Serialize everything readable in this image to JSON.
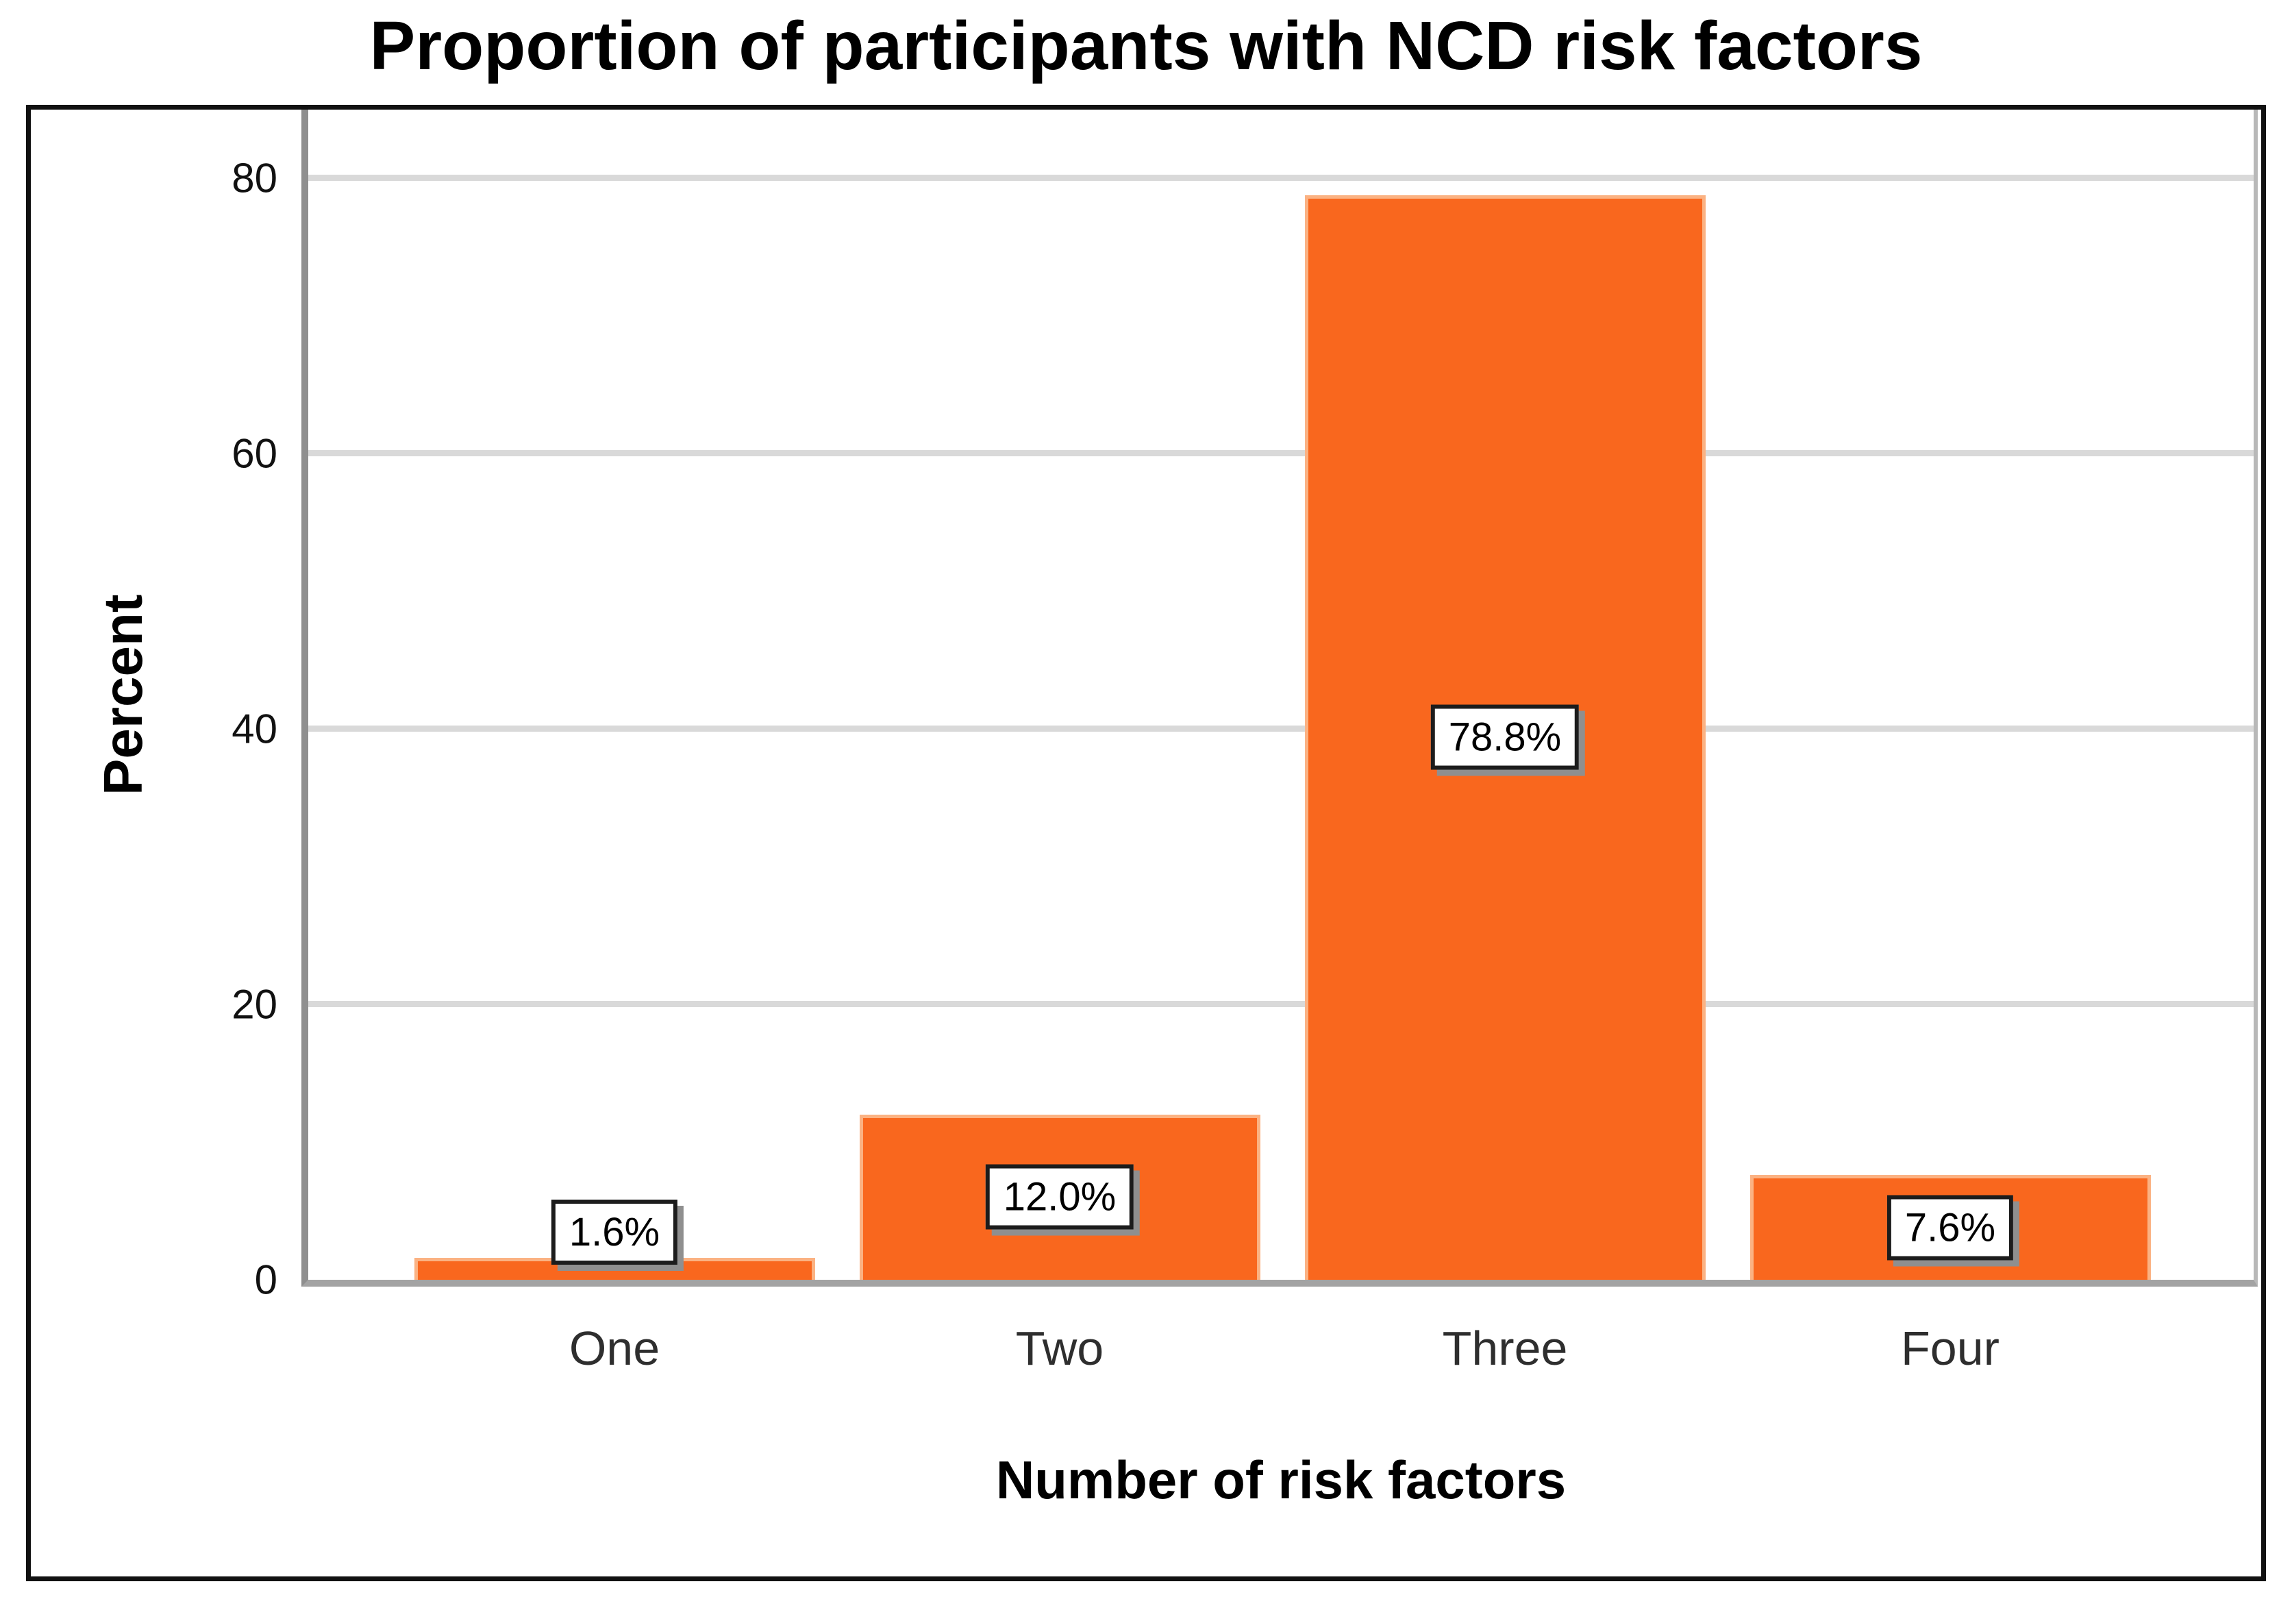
{
  "chart_data": {
    "type": "bar",
    "title": "Proportion of participants with NCD risk factors",
    "xlabel": "Number of risk factors",
    "ylabel": "Percent",
    "categories": [
      "One",
      "Two",
      "Three",
      "Four"
    ],
    "values": [
      1.6,
      12.0,
      78.8,
      7.6
    ],
    "value_labels": [
      "1.6%",
      "12.0%",
      "78.8%",
      "7.6%"
    ],
    "value_label_position": [
      "above",
      "inside",
      "inside",
      "inside"
    ],
    "yticks": [
      0,
      20,
      40,
      60,
      80
    ],
    "ylim": [
      0,
      85
    ],
    "grid": "horizontal",
    "legend": "none",
    "colors": {
      "bar": "#F9671E",
      "bar_edge": "#FBB283",
      "gridline": "#D9D9D9",
      "axis": "#8F8F8F",
      "frame": "#111111",
      "label_box_bg": "#FFFFFF",
      "label_box_border": "#1C1C1C",
      "label_box_shadow": "#8F8F8F",
      "category_text": "#2E2E2E"
    }
  }
}
